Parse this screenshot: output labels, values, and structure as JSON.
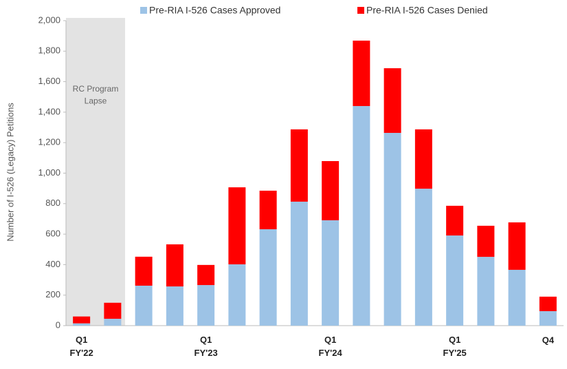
{
  "chart_data": {
    "type": "stacked_bar",
    "y_label": "Number of I-526 (Legacy) Petitions",
    "annotation": "RC Program Lapse",
    "categories": [
      "Q1\nFY'22",
      null,
      null,
      null,
      "Q1\nFY'23",
      null,
      null,
      null,
      "Q1\nFY'24",
      null,
      null,
      null,
      "Q1\nFY'25",
      null,
      null,
      "Q4"
    ],
    "series": [
      {
        "name": "Pre-RIA I-526 Cases Approved",
        "color": "#9dc3e6",
        "values": [
          15,
          45,
          262,
          257,
          266,
          402,
          632,
          813,
          691,
          1440,
          1264,
          898,
          591,
          451,
          366,
          95
        ]
      },
      {
        "name": "Pre-RIA I-526 Cases Denied",
        "color": "#ff0000",
        "values": [
          45,
          105,
          190,
          276,
          132,
          505,
          253,
          474,
          388,
          429,
          424,
          389,
          195,
          204,
          311,
          95
        ]
      }
    ],
    "ylim": [
      0,
      2000
    ],
    "yticks": [
      0,
      200,
      400,
      600,
      800,
      {
        "value": 1000,
        "label": "1,000"
      },
      {
        "value": 1200,
        "label": "1,200"
      },
      {
        "value": 1400,
        "label": "1,400"
      },
      {
        "value": 1600,
        "label": "1,600"
      },
      {
        "value": 1800,
        "label": "1,800"
      },
      {
        "value": 2000,
        "label": "2,000"
      }
    ],
    "grid": false
  }
}
